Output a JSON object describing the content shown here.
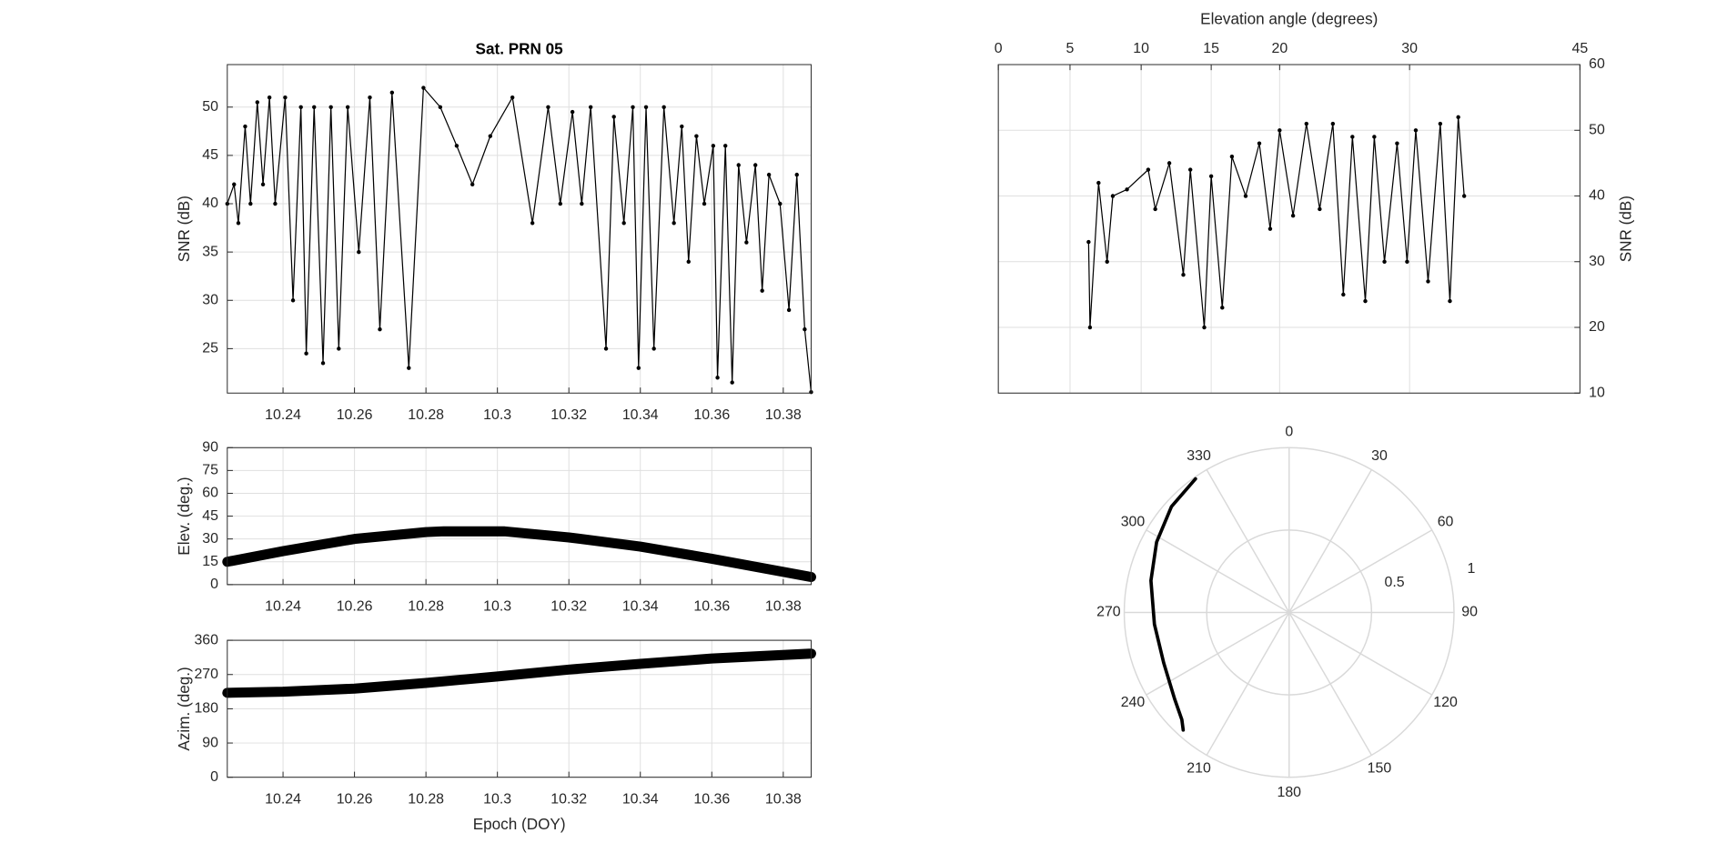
{
  "chart_data": [
    {
      "type": "line",
      "title": "Sat. PRN 05",
      "ylabel": "SNR (dB)",
      "x": [
        10.2244,
        10.2263,
        10.2275,
        10.2294,
        10.2309,
        10.2328,
        10.2344,
        10.2362,
        10.2378,
        10.2406,
        10.2428,
        10.245,
        10.2465,
        10.2487,
        10.2512,
        10.2534,
        10.2556,
        10.2581,
        10.2612,
        10.2643,
        10.2671,
        10.2705,
        10.2752,
        10.2793,
        10.284,
        10.2886,
        10.293,
        10.298,
        10.3042,
        10.3098,
        10.3142,
        10.3176,
        10.321,
        10.3236,
        10.3261,
        10.3304,
        10.3326,
        10.3354,
        10.3379,
        10.3395,
        10.3416,
        10.3438,
        10.3466,
        10.3494,
        10.3516,
        10.3535,
        10.3557,
        10.3579,
        10.3604,
        10.3616,
        10.3638,
        10.3657,
        10.3675,
        10.3697,
        10.3722,
        10.3741,
        10.376,
        10.3791,
        10.3816,
        10.3838,
        10.386,
        10.3878
      ],
      "values": [
        40,
        42,
        38,
        48,
        40,
        50.5,
        42,
        51,
        40,
        51,
        30,
        50,
        24.5,
        50,
        23.5,
        50,
        25,
        50,
        35,
        51,
        27,
        51.5,
        23,
        52,
        50,
        46,
        42,
        47,
        51,
        38,
        50,
        40,
        49.5,
        40,
        50,
        25,
        49,
        38,
        50,
        23,
        50,
        25,
        50,
        38,
        48,
        34,
        47,
        40,
        46,
        22,
        46,
        21.5,
        44,
        36,
        44,
        31,
        43,
        40,
        29,
        43,
        27,
        20.5
      ],
      "color": "#000000",
      "marker": true,
      "line_width": 1,
      "grid": true,
      "xlim": [
        10.2244,
        10.3878
      ],
      "xticks": [
        10.24,
        10.26,
        10.28,
        10.3,
        10.32,
        10.34,
        10.36,
        10.38
      ],
      "ylim": [
        20.4,
        54.4
      ],
      "yticks": [
        25,
        30,
        35,
        40,
        45,
        50
      ]
    },
    {
      "type": "line",
      "ylabel": "Elev. (deg.)",
      "x": [
        10.2244,
        10.24,
        10.26,
        10.28,
        10.285,
        10.3,
        10.302,
        10.32,
        10.34,
        10.36,
        10.3878
      ],
      "values": [
        15,
        22,
        30,
        34.5,
        35,
        35,
        35,
        31,
        25,
        17,
        5
      ],
      "color": "#000000",
      "marker": false,
      "line_width": 9,
      "grid": true,
      "xlim": [
        10.2244,
        10.3878
      ],
      "xticks": [
        10.24,
        10.26,
        10.28,
        10.3,
        10.32,
        10.34,
        10.36,
        10.38
      ],
      "ylim": [
        0,
        90
      ],
      "yticks": [
        0,
        15,
        30,
        45,
        60,
        75,
        90
      ]
    },
    {
      "type": "line",
      "ylabel": "Azim. (deg.)",
      "xlabel": "Epoch (DOY)",
      "x": [
        10.2244,
        10.24,
        10.26,
        10.28,
        10.3,
        10.32,
        10.34,
        10.36,
        10.3878
      ],
      "values": [
        222,
        225,
        233,
        248,
        265,
        283,
        298,
        312,
        325
      ],
      "color": "#000000",
      "marker": false,
      "line_width": 9,
      "grid": true,
      "xlim": [
        10.2244,
        10.3878
      ],
      "xticks": [
        10.24,
        10.26,
        10.28,
        10.3,
        10.32,
        10.34,
        10.36,
        10.38
      ],
      "ylim": [
        0,
        360
      ],
      "yticks": [
        0,
        90,
        180,
        270,
        360
      ]
    },
    {
      "type": "line",
      "xlabel": "Elevation angle (degrees)",
      "ylabel": "SNR (dB)",
      "xscale": "sine",
      "xaxis_position": "top",
      "yaxis_position": "right",
      "x": [
        6.3,
        6.4,
        7,
        7.6,
        8,
        9,
        10.5,
        11,
        12,
        13,
        13.5,
        14.5,
        15,
        15.8,
        16.5,
        17.5,
        18.5,
        19.3,
        20,
        21,
        22,
        23,
        24,
        24.8,
        25.5,
        26.5,
        27.2,
        28,
        29,
        29.8,
        30.5,
        31.5,
        32.5,
        33.3,
        34,
        34.5
      ],
      "values": [
        33,
        20,
        42,
        30,
        40,
        41,
        44,
        38,
        45,
        28,
        44,
        20,
        43,
        23,
        46,
        40,
        48,
        35,
        50,
        37,
        51,
        38,
        51,
        25,
        49,
        24,
        49,
        30,
        48,
        30,
        50,
        27,
        51,
        24,
        52,
        40
      ],
      "color": "#000000",
      "marker": true,
      "line_width": 1,
      "grid": true,
      "xlim": [
        0,
        45
      ],
      "xticks": [
        0,
        5,
        10,
        15,
        20,
        30,
        45
      ],
      "ylim": [
        10,
        60
      ],
      "yticks": [
        10,
        20,
        30,
        40,
        50,
        60
      ]
    },
    {
      "type": "polar",
      "theta_direction": "clockwise",
      "theta_zero_location": "top",
      "theta": [
        222,
        225,
        233,
        248,
        265,
        283,
        298,
        312,
        325
      ],
      "r": [
        0.96,
        0.92,
        0.87,
        0.82,
        0.82,
        0.86,
        0.91,
        0.96,
        0.99
      ],
      "color": "#000000",
      "line_width": 3,
      "rlim": [
        0,
        1
      ],
      "rticks": [
        0.5,
        1
      ],
      "thetaticks": [
        0,
        30,
        60,
        90,
        120,
        150,
        180,
        210,
        240,
        270,
        300,
        330
      ]
    }
  ]
}
